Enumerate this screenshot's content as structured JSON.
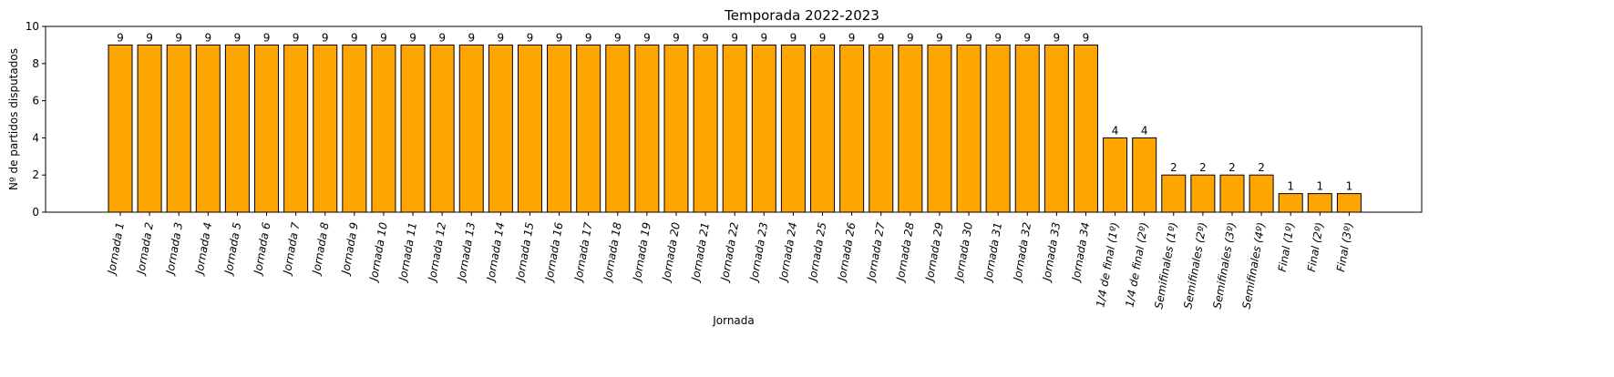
{
  "chart_data": {
    "type": "bar",
    "title": "Temporada 2022-2023",
    "xlabel": "Jornada",
    "ylabel": "Nº de partidos disputados",
    "ylim": [
      0,
      10
    ],
    "yticks": [
      0,
      2,
      4,
      6,
      8,
      10
    ],
    "grid": false,
    "bar_color": "#FFA500",
    "bar_edge_color": "#000000",
    "categories": [
      "Jornada 1",
      "Jornada 2",
      "Jornada 3",
      "Jornada 4",
      "Jornada 5",
      "Jornada 6",
      "Jornada 7",
      "Jornada 8",
      "Jornada 9",
      "Jornada 10",
      "Jornada 11",
      "Jornada 12",
      "Jornada 13",
      "Jornada 14",
      "Jornada 15",
      "Jornada 16",
      "Jornada 17",
      "Jornada 18",
      "Jornada 19",
      "Jornada 20",
      "Jornada 21",
      "Jornada 22",
      "Jornada 23",
      "Jornada 24",
      "Jornada 25",
      "Jornada 26",
      "Jornada 27",
      "Jornada 28",
      "Jornada 29",
      "Jornada 30",
      "Jornada 31",
      "Jornada 32",
      "Jornada 33",
      "Jornada 34",
      "1/4 de final (1º)",
      "1/4 de final (2º)",
      "Semifinales (1º)",
      "Semifinales (2º)",
      "Semifinales (3º)",
      "Semifinales (4º)",
      "Final (1º)",
      "Final (2º)",
      "Final (3º)"
    ],
    "values": [
      9,
      9,
      9,
      9,
      9,
      9,
      9,
      9,
      9,
      9,
      9,
      9,
      9,
      9,
      9,
      9,
      9,
      9,
      9,
      9,
      9,
      9,
      9,
      9,
      9,
      9,
      9,
      9,
      9,
      9,
      9,
      9,
      9,
      9,
      4,
      4,
      2,
      2,
      2,
      2,
      1,
      1,
      1
    ]
  }
}
